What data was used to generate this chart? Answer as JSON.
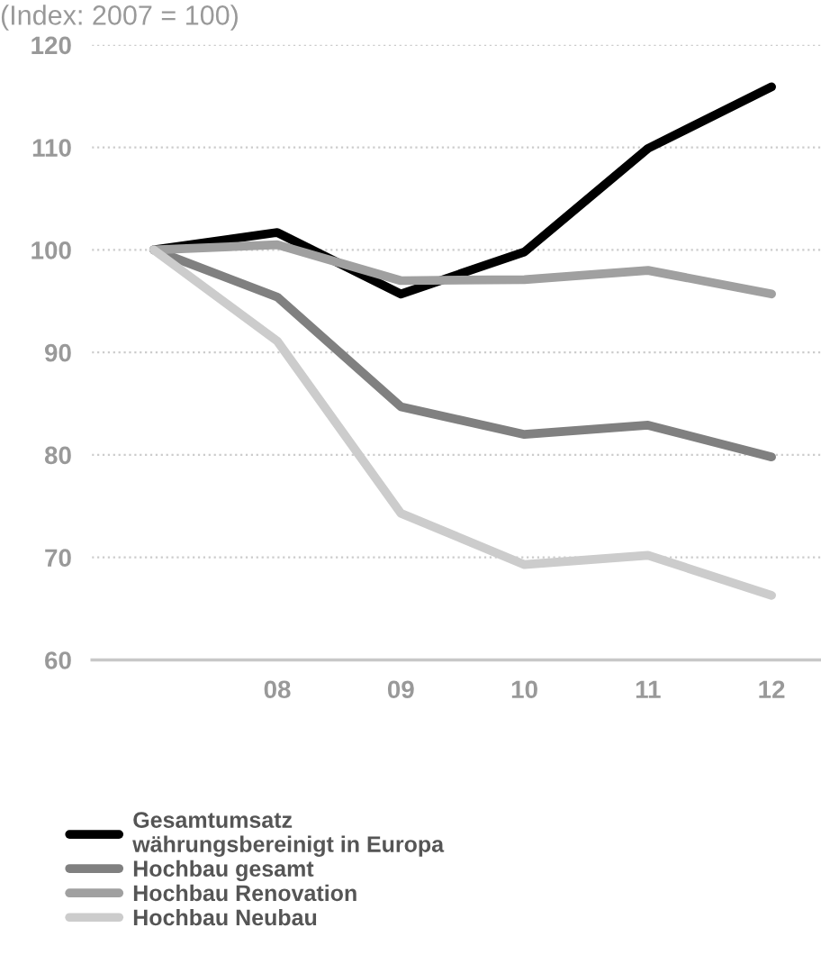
{
  "chart_data": {
    "type": "line",
    "title": "(Index: 2007 = 100)",
    "categories": [
      null,
      "08",
      "09",
      "10",
      "11",
      "12"
    ],
    "series": [
      {
        "name": "Gesamtumsatz\nwährungsbereinigt in Europa",
        "color": "#000000",
        "values": [
          100,
          101.7,
          95.7,
          99.8,
          109.9,
          115.9
        ]
      },
      {
        "name": "Hochbau gesamt",
        "color": "#808080",
        "values": [
          100,
          95.4,
          84.7,
          82.0,
          82.9,
          79.8
        ]
      },
      {
        "name": "Hochbau Renovation",
        "color": "#a0a0a0",
        "values": [
          100,
          100.5,
          97.0,
          97.1,
          98.0,
          95.7
        ]
      },
      {
        "name": "Hochbau Neubau",
        "color": "#cccccc",
        "values": [
          100,
          91.1,
          74.3,
          69.3,
          70.2,
          66.3
        ]
      }
    ],
    "ylim": [
      60,
      120
    ],
    "yticks": [
      60,
      70,
      80,
      90,
      100,
      110,
      120
    ],
    "grid": "y",
    "legend": "bottom",
    "marker": "none",
    "line_style": "solid"
  }
}
